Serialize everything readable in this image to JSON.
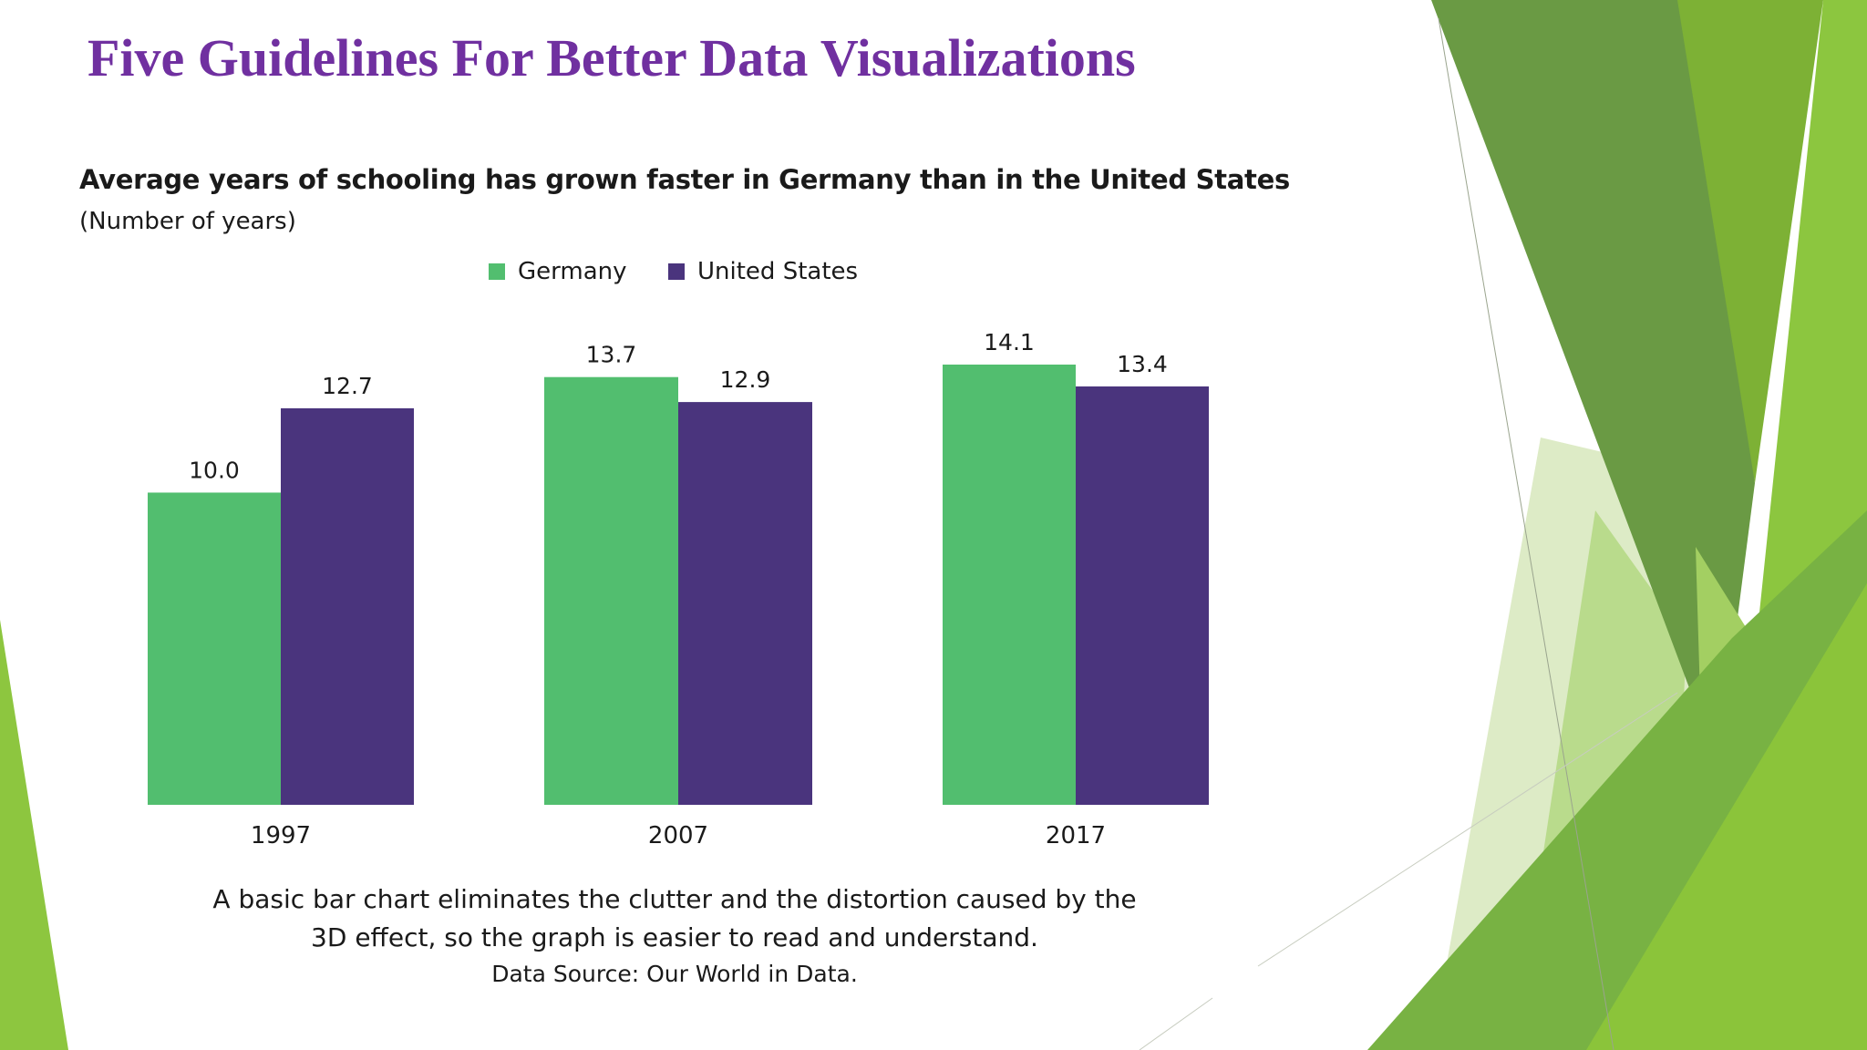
{
  "slide": {
    "title": "Five Guidelines For Better Data Visualizations"
  },
  "chart_data": {
    "type": "bar",
    "title": "Average years of schooling has grown faster in Germany than in the United States",
    "subtitle": "(Number of years)",
    "categories": [
      "1997",
      "2007",
      "2017"
    ],
    "series": [
      {
        "name": "Germany",
        "values": [
          10.0,
          13.7,
          14.1
        ],
        "labels": [
          "10.0",
          "13.7",
          "14.1"
        ],
        "color": "#52BE6F"
      },
      {
        "name": "United States",
        "values": [
          12.7,
          12.9,
          13.4
        ],
        "labels": [
          "12.7",
          "12.9",
          "13.4"
        ],
        "color": "#4A347D"
      }
    ],
    "ylim": [
      0,
      14.1
    ],
    "xlabel": "",
    "ylabel": "",
    "grid": false,
    "legend_position": "top"
  },
  "caption": {
    "line1": "A basic bar chart eliminates the clutter and the distortion caused by the",
    "line2": "3D effect, so the graph is easier to read and understand.",
    "source": "Data Source: Our World in Data."
  },
  "theme": {
    "title_color": "#7030A0",
    "accent_greens": [
      "#6A9A44",
      "#7DB135",
      "#8CC63F",
      "#A3CF62",
      "#C9E3A6"
    ]
  }
}
